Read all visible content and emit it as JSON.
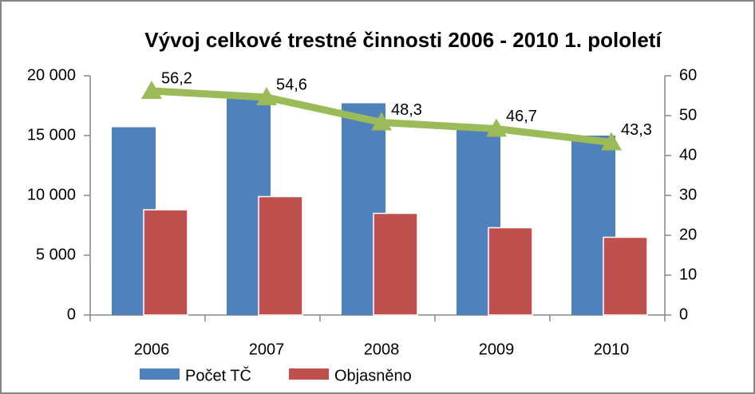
{
  "chart_data": {
    "type": "bar",
    "title": "Vývoj celkové trestné činnosti 2006 - 2010  1. pololetí",
    "categories": [
      "2006",
      "2007",
      "2008",
      "2009",
      "2010"
    ],
    "series": [
      {
        "name": "Počet TČ",
        "color": "#4f81bd",
        "values": [
          15700,
          18100,
          17700,
          15800,
          15000
        ]
      },
      {
        "name": "Objasněno",
        "color": "#c0504d",
        "values": [
          8800,
          9900,
          8500,
          7300,
          6500
        ]
      },
      {
        "type": "line",
        "axis": "y2",
        "color": "#9bbb59",
        "values": [
          56.2,
          54.6,
          48.3,
          46.7,
          43.3
        ],
        "value_labels": [
          "56,2",
          "54,6",
          "48,3",
          "46,7",
          "43,3"
        ]
      }
    ],
    "ylim": [
      0,
      20000
    ],
    "yticks": [
      {
        "value": 0,
        "label": "0"
      },
      {
        "value": 5000,
        "label": "5 000"
      },
      {
        "value": 10000,
        "label": "10 000"
      },
      {
        "value": 15000,
        "label": "15 000"
      },
      {
        "value": 20000,
        "label": "20 000"
      }
    ],
    "y2lim": [
      0,
      60
    ],
    "y2ticks": [
      0,
      10,
      20,
      30,
      40,
      50,
      60
    ],
    "legend": "bottom"
  }
}
